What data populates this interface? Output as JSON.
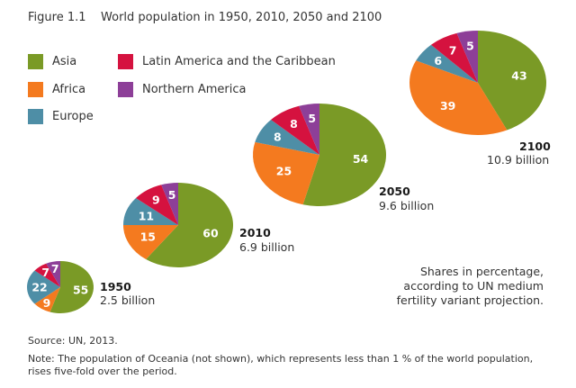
{
  "chart_data": {
    "type": "pie",
    "title": "Figure 1.1    World population in 1950, 2010, 2050 and 2100",
    "legend": [
      {
        "name": "Asia",
        "color": "#7a9a26"
      },
      {
        "name": "Africa",
        "color": "#f47a1f"
      },
      {
        "name": "Europe",
        "color": "#4e8ea6"
      },
      {
        "name": "Latin America and the Caribbean",
        "color": "#d5123f"
      },
      {
        "name": "Northern America",
        "color": "#8d3f98"
      }
    ],
    "categories": [
      "Asia",
      "Africa",
      "Europe",
      "Latin America and the Caribbean",
      "Northern America"
    ],
    "pies": [
      {
        "year": "1950",
        "total": "2.5 billion",
        "values": [
          55,
          9,
          22,
          7,
          7
        ]
      },
      {
        "year": "2010",
        "total": "6.9 billion",
        "values": [
          60,
          15,
          11,
          9,
          5
        ]
      },
      {
        "year": "2050",
        "total": "9.6 billion",
        "values": [
          54,
          25,
          8,
          8,
          5
        ]
      },
      {
        "year": "2100",
        "total": "10.9 billion",
        "values": [
          43,
          39,
          6,
          7,
          5
        ]
      }
    ],
    "annotation": [
      "Shares in percentage,",
      "according to UN medium",
      "fertility variant projection."
    ],
    "source": "Source: UN, 2013.",
    "note": "Note: The population of Oceania (not shown), which represents less than 1 % of the world population, rises five-fold over the period."
  }
}
